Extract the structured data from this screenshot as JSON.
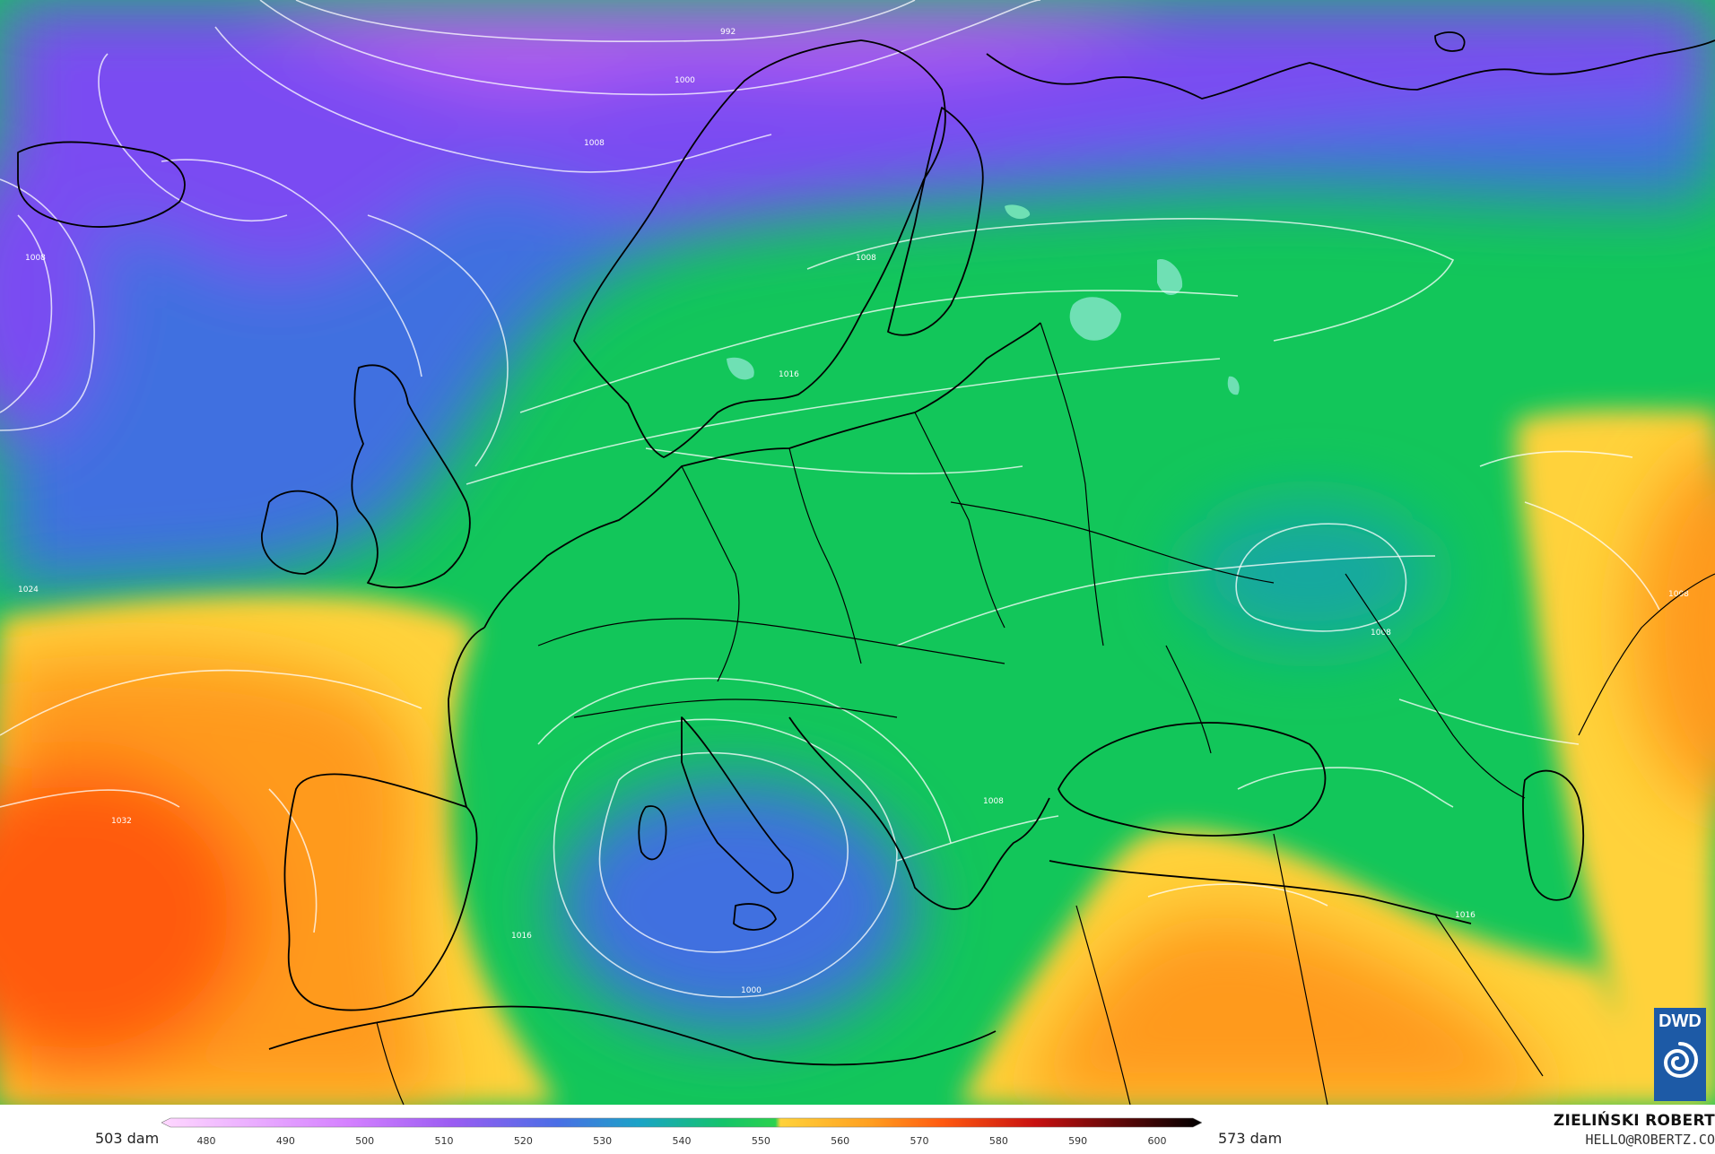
{
  "map": {
    "isobar_labels": [
      "992",
      "1000",
      "1008",
      "1008",
      "1008",
      "1016",
      "1024",
      "1008",
      "1008",
      "1032",
      "1016",
      "1008",
      "1000",
      "1016"
    ],
    "colors": {
      "purple": "#b25cf0",
      "violet": "#7a4cf2",
      "blue": "#3f6fe0",
      "teal": "#19a8a0",
      "green": "#12c65a",
      "yellow": "#ffd23a",
      "orange": "#ff9a1e",
      "red_orange": "#ff5a10",
      "coast": "#000000",
      "isobar": "#ffffff"
    }
  },
  "legend": {
    "min_label": "503 dam",
    "max_label": "573 dam",
    "ticks": [
      "480",
      "490",
      "500",
      "510",
      "520",
      "530",
      "540",
      "550",
      "560",
      "570",
      "580",
      "590",
      "600"
    ]
  },
  "credit": {
    "author": "ZIELIŃSKI ROBERT",
    "email": "HELLO@ROBERTZ.CO"
  },
  "logo": {
    "text": "DWD",
    "icon": "dwd-swirl-icon"
  }
}
